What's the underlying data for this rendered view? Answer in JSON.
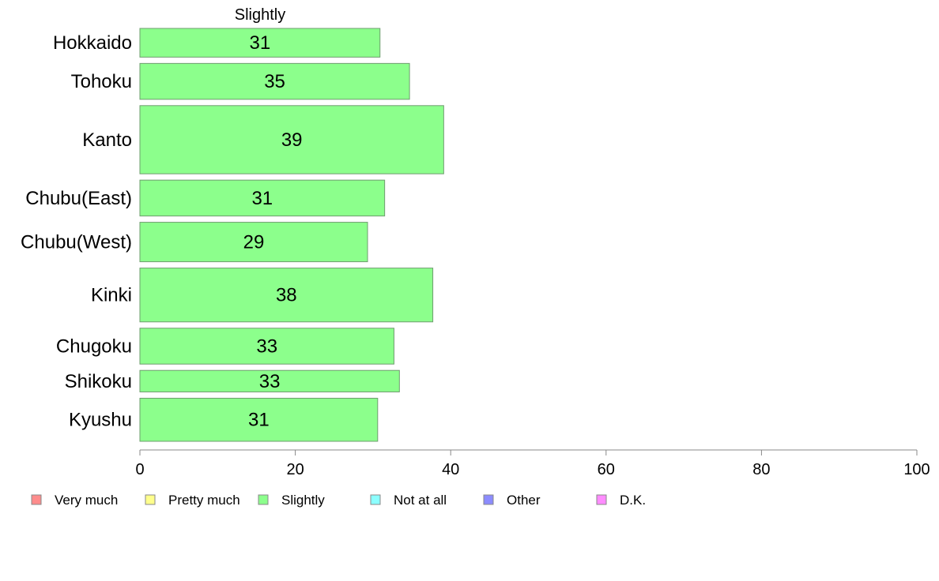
{
  "chart_data": {
    "type": "bar",
    "orientation": "horizontal",
    "title": "",
    "panel_title": "Slightly",
    "xlabel": "",
    "ylabel": "",
    "xlim": [
      0,
      100
    ],
    "xticks": [
      "0",
      "20",
      "40",
      "60",
      "80",
      "100"
    ],
    "grid": false,
    "categories": [
      "Hokkaido",
      "Tohoku",
      "Kanto",
      "Chubu(East)",
      "Chubu(West)",
      "Kinki",
      "Chugoku",
      "Shikoku",
      "Kyushu"
    ],
    "series": [
      {
        "name": "Slightly",
        "color": "#8cff8c",
        "values": [
          31,
          35,
          39,
          31,
          29,
          38,
          33,
          33,
          31
        ],
        "exact_values": [
          30.9,
          34.7,
          39.1,
          31.5,
          29.3,
          37.7,
          32.7,
          33.4,
          30.6
        ]
      }
    ],
    "bar_weights": [
      8,
      10,
      19,
      10,
      11,
      15,
      10,
      6,
      12
    ],
    "legend": {
      "position": "bottom",
      "items": [
        {
          "label": "Very much",
          "color": "#ff8c8c"
        },
        {
          "label": "Pretty much",
          "color": "#ffff8c"
        },
        {
          "label": "Slightly",
          "color": "#8cff8c"
        },
        {
          "label": "Not at all",
          "color": "#8cffff"
        },
        {
          "label": "Other",
          "color": "#8c8cff"
        },
        {
          "label": "D.K.",
          "color": "#ff8cff"
        }
      ]
    },
    "bar_stroke": "#6e9c6e",
    "axis_color": "#888888"
  }
}
